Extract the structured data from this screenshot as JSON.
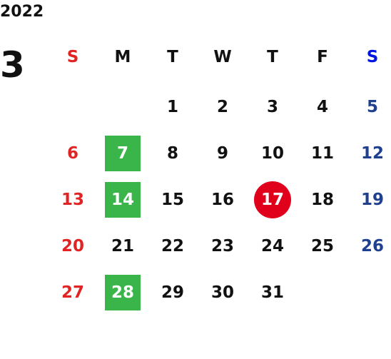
{
  "year": "2022",
  "month": "3",
  "weekdays": [
    "S",
    "M",
    "T",
    "W",
    "T",
    "F",
    "S"
  ],
  "weeks": [
    [
      null,
      null,
      1,
      2,
      3,
      4,
      5
    ],
    [
      6,
      {
        "day": 7,
        "highlight": "square"
      },
      8,
      9,
      10,
      11,
      12
    ],
    [
      13,
      {
        "day": 14,
        "highlight": "square"
      },
      15,
      16,
      {
        "day": 17,
        "highlight": "circle"
      },
      18,
      19
    ],
    [
      20,
      21,
      22,
      23,
      24,
      25,
      26
    ],
    [
      27,
      {
        "day": 28,
        "highlight": "square"
      },
      29,
      30,
      31,
      null,
      null
    ]
  ]
}
